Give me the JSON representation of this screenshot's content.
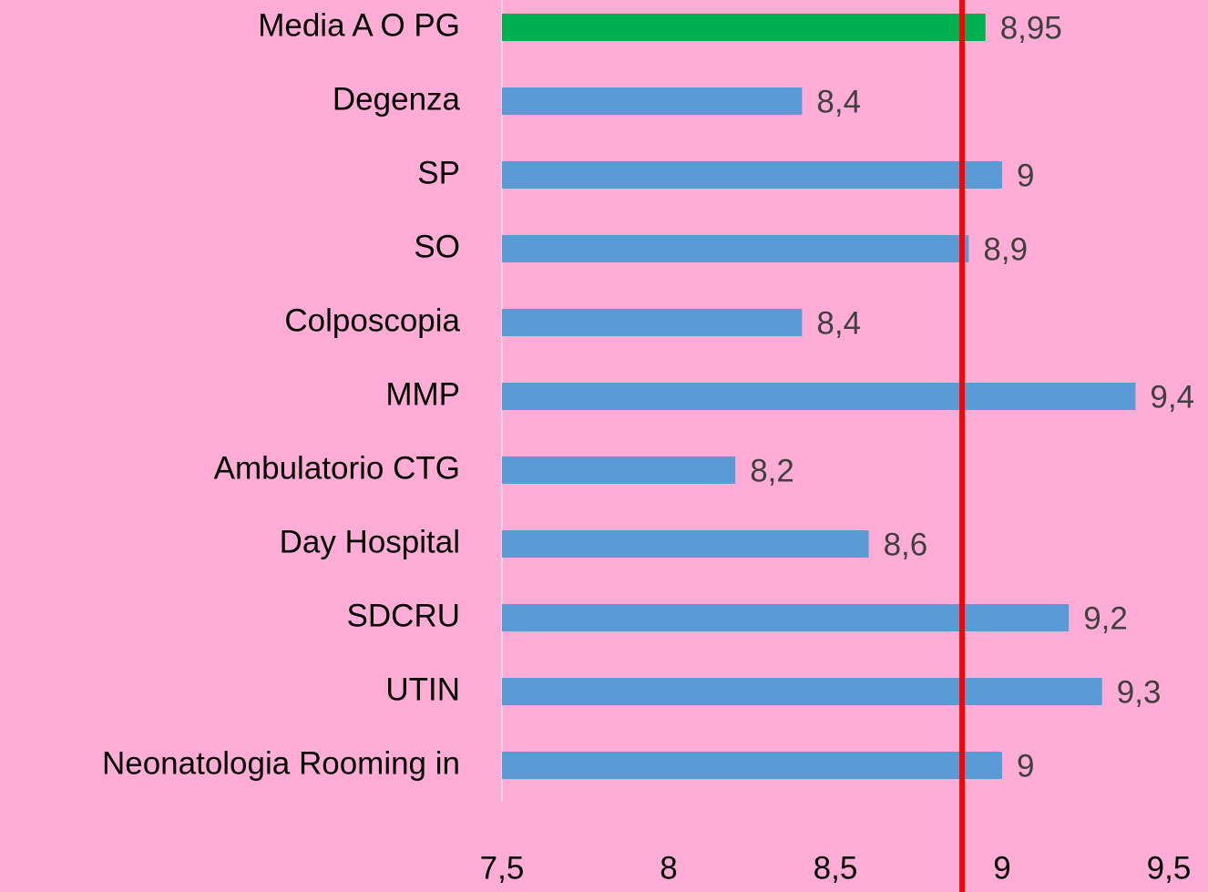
{
  "chart_data": {
    "type": "hbar",
    "categories": [
      "Media A O PG",
      "Degenza",
      "SP",
      "SO",
      "Colposcopia",
      "MMP",
      "Ambulatorio CTG",
      "Day Hospital",
      "SDCRU",
      "UTIN",
      "Neonatologia Rooming in"
    ],
    "values": [
      8.95,
      8.4,
      9,
      8.9,
      8.4,
      9.4,
      8.2,
      8.6,
      9.2,
      9.3,
      9
    ],
    "value_labels": [
      "8,95",
      "8,4",
      "9",
      "8,9",
      "8,4",
      "9,4",
      "8,2",
      "8,6",
      "9,2",
      "9,3",
      "9"
    ],
    "colors": [
      "#00b050",
      "#5b9bd5",
      "#5b9bd5",
      "#5b9bd5",
      "#5b9bd5",
      "#5b9bd5",
      "#5b9bd5",
      "#5b9bd5",
      "#5b9bd5",
      "#5b9bd5",
      "#5b9bd5"
    ],
    "xlim": [
      7.5,
      9.5
    ],
    "xticks": [
      {
        "value": 7.5,
        "label": "7,5"
      },
      8,
      {
        "value": 8.5,
        "label": "8,5"
      },
      9,
      {
        "value": 9.5,
        "label": "9,5"
      }
    ],
    "reference_line": {
      "value": 8.88,
      "color": "#ff0000"
    }
  }
}
